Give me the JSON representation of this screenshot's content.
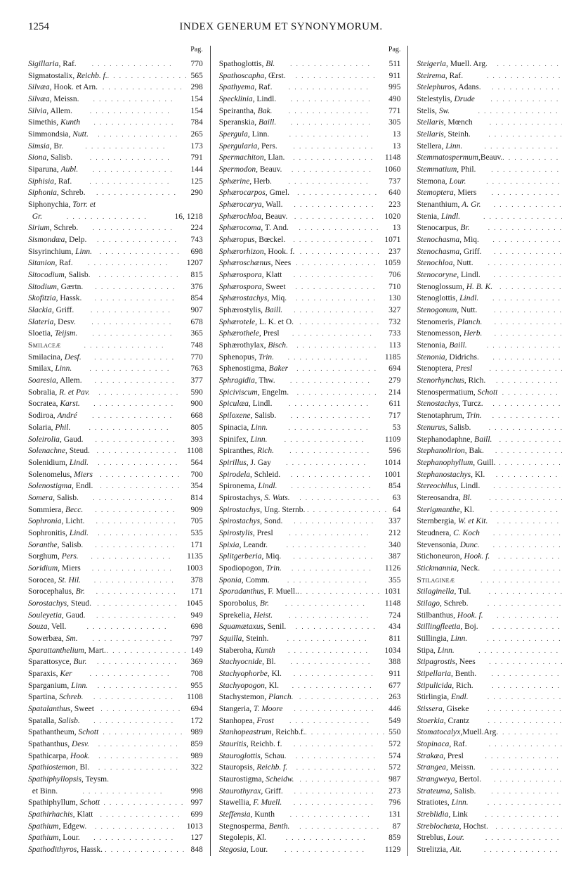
{
  "pageNumber": "1254",
  "title": "INDEX GENERUM ET SYNONYMORUM.",
  "colLabel": "Pag.",
  "columns": [
    [
      {
        "n": "<i>Sigillaria</i>, Raf.",
        "p": "770"
      },
      {
        "n": "Sigmatostalix, <i>Reichb. f.</i>",
        "p": "565"
      },
      {
        "n": "<i>Silvæa</i>, Hook. et Arn.",
        "p": "298"
      },
      {
        "n": "<i>Silvæa</i>, Meissn.",
        "p": "154"
      },
      {
        "n": "<i>Silvia</i>, Allem.",
        "p": "154"
      },
      {
        "n": "Simethis, <i>Kunth</i>",
        "p": "784"
      },
      {
        "n": "Simmondsia, <i>Nutt.</i>",
        "p": "265"
      },
      {
        "n": "<i>Simsia</i>, Br.",
        "p": "173"
      },
      {
        "n": "<i>Siona</i>, Salisb.",
        "p": "791"
      },
      {
        "n": "Siparuna, <i>Aubl.</i>",
        "p": "144"
      },
      {
        "n": "<i>Siphisia</i>, Raf.",
        "p": "125"
      },
      {
        "n": "<i>Siphonia</i>, Schreb.",
        "p": "290"
      },
      {
        "n": "Siphonychia, <i>Torr. et</i>",
        "p": ""
      },
      {
        "n": "&nbsp;&nbsp;<i>Gr.</i>",
        "p": "16, 1218"
      },
      {
        "n": "<i>Sirium</i>, Schreb.",
        "p": "224"
      },
      {
        "n": "<i>Sismondæa</i>, Delp.",
        "p": "743"
      },
      {
        "n": "Sisyrinchium, <i>Linn.</i>",
        "p": "698"
      },
      {
        "n": "<i>Sitanion</i>, Raf.",
        "p": "1207"
      },
      {
        "n": "<i>Sitocodium</i>, Salisb.",
        "p": "815"
      },
      {
        "n": "<i>Sitodium</i>, Gærtn.",
        "p": "376"
      },
      {
        "n": "<i>Skofitzia</i>, Hassk.",
        "p": "854"
      },
      {
        "n": "<i>Slackia</i>, Griff.",
        "p": "907"
      },
      {
        "n": "<i>Slateria</i>, Desv.",
        "p": "678"
      },
      {
        "n": "Sloetia, <i>Teijsm.</i>",
        "p": "365"
      },
      {
        "n": "<span class='sc'>Smilaceæ</span>",
        "p": "748"
      },
      {
        "n": "Smilacina, <i>Desf.</i>",
        "p": "770"
      },
      {
        "n": "Smilax, <i>Linn.</i>",
        "p": "763"
      },
      {
        "n": "<i>Soaresia</i>, Allem.",
        "p": "377"
      },
      {
        "n": "Sobralia, <i>R. et Pav.</i>",
        "p": "590"
      },
      {
        "n": "Socratea, <i>Karst.</i>",
        "p": "900"
      },
      {
        "n": "Sodiroa, <i>André</i>",
        "p": "668"
      },
      {
        "n": "Solaria, <i>Phil.</i>",
        "p": "805"
      },
      {
        "n": "<i>Soleirolia</i>, Gaud.",
        "p": "393"
      },
      {
        "n": "<i>Solenachne</i>, Steud.",
        "p": "1108"
      },
      {
        "n": "Solenidium, <i>Lindl.</i>",
        "p": "564"
      },
      {
        "n": "Solenomelus, <i>Miers</i>",
        "p": "700"
      },
      {
        "n": "<i>Solenostigma</i>, Endl.",
        "p": "354"
      },
      {
        "n": "<i>Somera</i>, Salisb.",
        "p": "814"
      },
      {
        "n": "Sommiera, <i>Becc.</i>",
        "p": "909"
      },
      {
        "n": "<i>Sophronia</i>, Licht.",
        "p": "705"
      },
      {
        "n": "Sophronitis, <i>Lindl.</i>",
        "p": "535"
      },
      {
        "n": "<i>Soranthe</i>, Salisb.",
        "p": "171"
      },
      {
        "n": "Sorghum, <i>Pers.</i>",
        "p": "1135"
      },
      {
        "n": "<i>Soridium</i>, Miers",
        "p": "1003"
      },
      {
        "n": "Sorocea, <i>St. Hil.</i>",
        "p": "378"
      },
      {
        "n": "Sorocephalus, <i>Br.</i>",
        "p": "171"
      },
      {
        "n": "<i>Sorostachys</i>, Steud.",
        "p": "1045"
      },
      {
        "n": "<i>Souleyetia</i>, Gaud.",
        "p": "949"
      },
      {
        "n": "<i>Souza</i>, Vell.",
        "p": "698"
      },
      {
        "n": "Sowerbæa, <i>Sm.</i>",
        "p": "797"
      },
      {
        "n": "<i>Sparattanthelium</i>, Mart.",
        "p": "149"
      },
      {
        "n": "Sparattosyce, <i>Bur.</i>",
        "p": "369"
      },
      {
        "n": "Sparaxis, <i>Ker</i>",
        "p": "708"
      },
      {
        "n": "Sparganium, <i>Linn.</i>",
        "p": "955"
      },
      {
        "n": "Spartina, <i>Schreb.</i>",
        "p": "1108"
      },
      {
        "n": "<i>Spatalanthus</i>, Sweet",
        "p": "694"
      },
      {
        "n": "Spatalla, <i>Salisb.</i>",
        "p": "172"
      },
      {
        "n": "Spathantheum, <i>Schott</i>",
        "p": "989"
      },
      {
        "n": "Spathanthus, <i>Desv.</i>",
        "p": "859"
      },
      {
        "n": "Spathicarpa, <i>Hook.</i>",
        "p": "989"
      },
      {
        "n": "<i>Spathiostemon</i>, Bl.",
        "p": "322"
      },
      {
        "n": "<i>Spathiphyllopsis</i>, Teysm.",
        "p": ""
      },
      {
        "n": "&nbsp;&nbsp;et Binn.",
        "p": "998"
      },
      {
        "n": "Spathiphyllum, <i>Schott</i>",
        "p": "997"
      },
      {
        "n": "<i>Spathirhachis</i>, Klatt",
        "p": "699"
      },
      {
        "n": "<i>Spathium</i>, Edgew.",
        "p": "1013"
      },
      {
        "n": "<i>Spathium</i>, Lour.",
        "p": "127"
      },
      {
        "n": "<i>Spathodithyros</i>, Hassk.",
        "p": "848"
      }
    ],
    [
      {
        "n": "Spathoglottis, <i>Bl.</i>",
        "p": "511"
      },
      {
        "n": "<i>Spathoscapha</i>, Œrst.",
        "p": "911"
      },
      {
        "n": "<i>Spathyema</i>, Raf.",
        "p": "995"
      },
      {
        "n": "<i>Specklinia</i>, Lindl.",
        "p": "490"
      },
      {
        "n": "Speirantha, <i>Bak.</i>",
        "p": "771"
      },
      {
        "n": "Speranskia, <i>Baill.</i>",
        "p": "305"
      },
      {
        "n": "<i>Spergula</i>, Linn.",
        "p": "13"
      },
      {
        "n": "<i>Spergularia</i>, Pers.",
        "p": "13"
      },
      {
        "n": "<i>Spermachiton</i>, Llan.",
        "p": "1148"
      },
      {
        "n": "<i>Spermodon</i>, Beauv.",
        "p": "1060"
      },
      {
        "n": "<i>Sphærine</i>, Herb.",
        "p": "737"
      },
      {
        "n": "<i>Sphærocarpos</i>, Gmel.",
        "p": "640"
      },
      {
        "n": "<i>Sphærocarya</i>, Wall.",
        "p": "223"
      },
      {
        "n": "<i>Sphærochloa</i>, Beauv.",
        "p": "1020"
      },
      {
        "n": "<i>Sphærocoma</i>, T. And.",
        "p": "13"
      },
      {
        "n": "<i>Sphæropus</i>, Bœckel.",
        "p": "1071"
      },
      {
        "n": "<i>Sphærorhizon</i>, Hook. f.",
        "p": "237"
      },
      {
        "n": "<i>Sphæroschænus</i>, Nees",
        "p": "1059"
      },
      {
        "n": "<i>Sphærospora</i>, Klatt",
        "p": "706"
      },
      {
        "n": "<i>Sphærospora</i>, Sweet",
        "p": "710"
      },
      {
        "n": "<i>Sphærostachys</i>, Miq.",
        "p": "130"
      },
      {
        "n": "Sphærostylis, <i>Baill.</i>",
        "p": "327"
      },
      {
        "n": "<i>Sphærotele</i>, L. K. et O.",
        "p": "732"
      },
      {
        "n": "<i>Sphærothele</i>, Presl",
        "p": "733"
      },
      {
        "n": "Sphærothylax, <i>Bisch.</i>",
        "p": "113"
      },
      {
        "n": "Sphenopus, <i>Trin.</i>",
        "p": "1185"
      },
      {
        "n": "Sphenostigma, <i>Baker</i>",
        "p": "694"
      },
      {
        "n": "<i>Sphragidia</i>, Thw.",
        "p": "279"
      },
      {
        "n": "<i>Spiciviscum</i>, Engelm.",
        "p": "214"
      },
      {
        "n": "<i>Spiculæa</i>, Lindl.",
        "p": "611"
      },
      {
        "n": "<i>Spiloxene</i>, Salisb.",
        "p": "717"
      },
      {
        "n": "Spinacia, <i>Linn.</i>",
        "p": "53"
      },
      {
        "n": "Spinifex, <i>Linn.</i>",
        "p": "1109"
      },
      {
        "n": "Spiranthes, <i>Rich.</i>",
        "p": "596"
      },
      {
        "n": "<i>Spirillus</i>, J. Gay",
        "p": "1014"
      },
      {
        "n": "<i>Spirodela</i>, Schleid.",
        "p": "1001"
      },
      {
        "n": "Spironema, <i>Lindl.</i>",
        "p": "854"
      },
      {
        "n": "Spirostachys, <i>S. Wats.</i>",
        "p": "63"
      },
      {
        "n": "<i>Spirostachys</i>, Ung. Sternb.",
        "p": "64"
      },
      {
        "n": "<i>Spirostachys</i>, Sond.",
        "p": "337"
      },
      {
        "n": "<i>Spirostylis</i>, Presl",
        "p": "212"
      },
      {
        "n": "<i>Spixia</i>, Leandr.",
        "p": "340"
      },
      {
        "n": "<i>Splitgerberia</i>, Miq.",
        "p": "387"
      },
      {
        "n": "Spodiopogon, <i>Trin.</i>",
        "p": "1126"
      },
      {
        "n": "<i>Sponia</i>, Comm.",
        "p": "355"
      },
      {
        "n": "<i>Sporadanthus</i>, F. Muell..",
        "p": "1031"
      },
      {
        "n": "Sporobolus, <i>Br.</i>",
        "p": "1148"
      },
      {
        "n": "Sprekelia, <i>Heist.</i>",
        "p": "724"
      },
      {
        "n": "<i>Squamætaxus</i>, Senil.",
        "p": "434"
      },
      {
        "n": "<i>Squilla</i>, Steinh.",
        "p": "811"
      },
      {
        "n": "Staberoha, <i>Kunth</i>",
        "p": "1034"
      },
      {
        "n": "<i>Stachyocnide</i>, Bl.",
        "p": "388"
      },
      {
        "n": "<i>Stachyophorbe</i>, Kl.",
        "p": "911"
      },
      {
        "n": "<i>Stachyopogon</i>, Kl.",
        "p": "677"
      },
      {
        "n": "Stachystemon, <i>Planch.</i>",
        "p": "263"
      },
      {
        "n": "Stangeria, <i>T. Moore</i>",
        "p": "446"
      },
      {
        "n": "Stanhopea, <i>Frost</i>",
        "p": "549"
      },
      {
        "n": "<i>Stanhopeastrum</i>, Reichb.f.",
        "p": "550"
      },
      {
        "n": "<i>Stauritis</i>, Reichb. f.",
        "p": "572"
      },
      {
        "n": "<i>Stauroglottis</i>, Schau.",
        "p": "574"
      },
      {
        "n": "Stauropsis, <i>Reichb. f.</i>",
        "p": "572"
      },
      {
        "n": "Staurostigma, <i>Scheidw.</i>",
        "p": "987"
      },
      {
        "n": "<i>Staurothyrax</i>, Griff.",
        "p": "273"
      },
      {
        "n": "Stawellia, <i>F. Muell.</i>",
        "p": "796"
      },
      {
        "n": "<i>Steffensia</i>, Kunth",
        "p": "131"
      },
      {
        "n": "Stegnosperma, <i>Benth.</i>",
        "p": "87"
      },
      {
        "n": "Stegolepis, <i>Kl.</i>",
        "p": "859"
      },
      {
        "n": "<i>Stegosia</i>, Lour.",
        "p": "1129"
      }
    ],
    [
      {
        "n": "<i>Steigeria</i>, Muell. Arg.",
        "p": "300"
      },
      {
        "n": "<i>Steirema</i>, Raf.",
        "p": "38"
      },
      {
        "n": "<i>Stelephuros</i>, Adans.",
        "p": "1146"
      },
      {
        "n": "Stelestylis, <i>Drude</i>",
        "p": "952"
      },
      {
        "n": "Stelis, <i>Sw.</i>",
        "p": "490"
      },
      {
        "n": "<i>Stellaris</i>, Mœnch",
        "p": "814"
      },
      {
        "n": "<i>Stellaris</i>, Steinh.",
        "p": "814"
      },
      {
        "n": "Stellera, <i>Linn.</i>",
        "p": "193"
      },
      {
        "n": "<i>Stemmatospermum</i>,Beauv.",
        "p": "1210"
      },
      {
        "n": "<i>Stemmatium</i>, Phil.",
        "p": "798"
      },
      {
        "n": "Stemona, <i>Lour.</i>",
        "p": "747"
      },
      {
        "n": "<i>Stemoptera</i>, Miers",
        "p": "458"
      },
      {
        "n": "Stenanthium, <i>A. Gr.</i>",
        "p": "835"
      },
      {
        "n": "Stenia, <i>Lindl.</i>",
        "p": "553"
      },
      {
        "n": "Stenocarpus, <i>Br.</i>",
        "p": "182"
      },
      {
        "n": "<i>Stenochasma</i>, Miq.",
        "p": "361"
      },
      {
        "n": "<i>Stenochasma</i>, Griff.",
        "p": "645"
      },
      {
        "n": "<i>Stenochloa</i>, Nutt.",
        "p": "1185"
      },
      {
        "n": "<i>Stenocoryne</i>, Lindl.",
        "p": "546"
      },
      {
        "n": "Stenoglossum, <i>H. B. K.</i>",
        "p": "523"
      },
      {
        "n": "Stenoglottis, <i>Lindl.</i>",
        "p": "622"
      },
      {
        "n": "<i>Stenogonum</i>, Nutt.",
        "p": "92"
      },
      {
        "n": "Stenomeris, <i>Planch.</i>",
        "p": "745"
      },
      {
        "n": "Stenomesson, <i>Herb.</i>",
        "p": "733"
      },
      {
        "n": "Stenonia, <i>Baill.</i>",
        "p": "267"
      },
      {
        "n": "<i>Stenonia</i>, Didrichs.",
        "p": "303"
      },
      {
        "n": "Stenoptera, <i>Presl</i>",
        "p": "595"
      },
      {
        "n": "<i>Stenorhynchus</i>, Rich.",
        "p": "597"
      },
      {
        "n": "Stenospermatium, <i>Schott</i>",
        "p": "990"
      },
      {
        "n": "<i>Stenostachys</i>, Turcz.",
        "p": "1228"
      },
      {
        "n": "Stenotaphrum, <i>Trin.</i>",
        "p": "1108"
      },
      {
        "n": "<i>Stenurus</i>, Salisb.",
        "p": "966"
      },
      {
        "n": "Stephanodaphne, <i>Baill.</i>",
        "p": "198"
      },
      {
        "n": "<i>Stephanolirion</i>, Bak.",
        "p": "798"
      },
      {
        "n": "<i>Stephanophyllum</i>, Guill.",
        "p": "1023"
      },
      {
        "n": "<i>Stephanostachys</i>, Kl.",
        "p": "911"
      },
      {
        "n": "<i>Stereochilus</i>, Lindl.",
        "p": "576"
      },
      {
        "n": "Stereosandra, <i>Bl.</i>",
        "p": "607"
      },
      {
        "n": "<i>Sterigmanthe</i>, Kl.",
        "p": "260"
      },
      {
        "n": "Sternbergia, <i>W. et Kit.</i>",
        "p": "721"
      },
      {
        "n": "Steudnera, <i>C. Koch</i>",
        "p": "988"
      },
      {
        "n": "Stevensonia, <i>Dunc.</i>",
        "p": "908"
      },
      {
        "n": "Stichoneuron, <i>Hook. f.</i>",
        "p": "747"
      },
      {
        "n": "<i>Stickmannia</i>, Neck.",
        "p": "853"
      },
      {
        "n": "<span class='sc'>Stilagineæ</span>",
        "p": "239"
      },
      {
        "n": "<i>Stilaginella</i>, Tul.",
        "p": "284"
      },
      {
        "n": "<i>Stilago</i>, Schreb.",
        "p": "284"
      },
      {
        "n": "Stilbanthus, <i>Hook. f.</i>",
        "p": "35"
      },
      {
        "n": "<i>Stillingfleetia</i>, Boj.",
        "p": "334"
      },
      {
        "n": "Stillingia, <i>Linn.</i>",
        "p": "334"
      },
      {
        "n": "Stipa, <i>Linn.</i>",
        "p": "1141"
      },
      {
        "n": "<i>Stipagrostis</i>, Nees",
        "p": "1141"
      },
      {
        "n": "<i>Stipellaria</i>, Benth.",
        "p": "315"
      },
      {
        "n": "<i>Stipulicida</i>, Rich.",
        "p": "13"
      },
      {
        "n": "Stirlingia, <i>Endl.</i>",
        "p": "173"
      },
      {
        "n": "<i>Stissera</i>, Giseke",
        "p": "643"
      },
      {
        "n": "<i>Stoerkia</i>, Crantz",
        "p": "779"
      },
      {
        "n": "<i>Stomatocalyx</i>,Muell.Arg.",
        "p": "331"
      },
      {
        "n": "<i>Stopinaca</i>, Raf.",
        "p": "97"
      },
      {
        "n": "<i>Strakæa</i>, Presl",
        "p": "122"
      },
      {
        "n": "<i>Strangea</i>, Meissn.",
        "p": "181"
      },
      {
        "n": "<i>Strangweya</i>, Bertol.",
        "p": "812"
      },
      {
        "n": "<i>Strateuma</i>, Salisb.",
        "p": "620"
      },
      {
        "n": "Stratiotes, <i>Linn.</i>",
        "p": "454"
      },
      {
        "n": "<i>Streblidia</i>, Link",
        "p": "1063"
      },
      {
        "n": "<i>Streblochæta</i>, Hochst.",
        "p": "1163"
      },
      {
        "n": "Streblus, <i>Lour.</i>",
        "p": "359"
      },
      {
        "n": "Strelitzia, <i>Ait.</i>",
        "p": "656"
      }
    ]
  ]
}
